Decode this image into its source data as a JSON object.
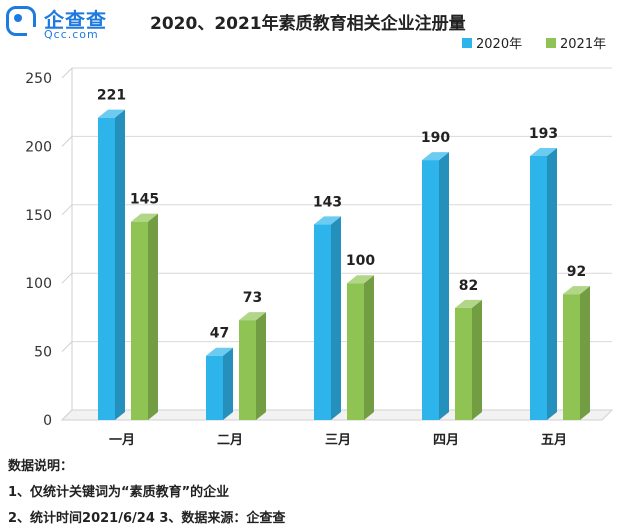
{
  "brand": {
    "name": "企查查",
    "domain": "Qcc.com",
    "color": "#1f7ae0"
  },
  "chart_data": {
    "type": "bar",
    "title": "2020、2021年素质教育相关企业注册量",
    "categories": [
      "一月",
      "二月",
      "三月",
      "四月",
      "五月"
    ],
    "series": [
      {
        "name": "2020年",
        "values": [
          221,
          47,
          143,
          190,
          193
        ],
        "color": "#2db4ea"
      },
      {
        "name": "2021年",
        "values": [
          145,
          73,
          100,
          82,
          92
        ],
        "color": "#8fc454"
      }
    ],
    "ylim": [
      0,
      250
    ],
    "yticks": [
      0,
      50,
      100,
      150,
      200,
      250
    ],
    "grid": true,
    "legend": "top-right",
    "xlabel": "",
    "ylabel": ""
  },
  "notes": {
    "heading": "数据说明：",
    "line1": "1、仅统计关键词为“素质教育”的企业",
    "line2": "2、统计时间2021/6/24   3、数据来源：企查查"
  }
}
